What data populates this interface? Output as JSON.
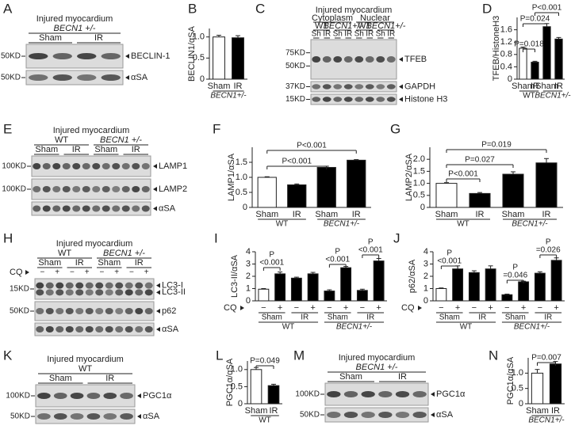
{
  "chart_data": [
    {
      "type": "bar",
      "panel": "B",
      "ylabel": "BECLIN1/αSA",
      "ylim": [
        0,
        1.2
      ],
      "yticks": [
        0,
        0.5,
        {
          "value": 1,
          "label": "1.0"
        }
      ],
      "groups": [
        {
          "name": "BECN1+/-",
          "categories": [
            "Sham",
            "IR"
          ],
          "values": [
            1.0,
            0.98
          ],
          "errors": [
            0.04,
            0.05
          ],
          "colors": [
            "#ffffff",
            "#000000"
          ]
        }
      ]
    },
    {
      "type": "bar",
      "panel": "D",
      "ylabel": "TFEB/HistoneH3",
      "ylim": [
        0,
        2.0
      ],
      "yticks": [
        0,
        0.4,
        0.8,
        1.2,
        1.6
      ],
      "groups": [
        {
          "name": "WT",
          "categories": [
            "Sham",
            "IR"
          ],
          "values": [
            1.0,
            0.55
          ],
          "errors": [
            0.04,
            0.03
          ],
          "colors": [
            "#ffffff",
            "#000000"
          ]
        },
        {
          "name": "BECN1+/-",
          "categories": [
            "Sham",
            "IR"
          ],
          "values": [
            1.7,
            1.3
          ],
          "errors": [
            0.1,
            0.05
          ],
          "colors": [
            "#000000",
            "#000000"
          ]
        }
      ],
      "comparisons": [
        "P=0.018",
        "P=0.024",
        "P<0.001"
      ]
    },
    {
      "type": "bar",
      "panel": "F",
      "ylabel": "LAMP1/αSA",
      "ylim": [
        0,
        2.0
      ],
      "yticks": [
        0,
        0.5,
        {
          "value": 1,
          "label": "1.0"
        },
        1.5
      ],
      "groups": [
        {
          "name": "WT",
          "categories": [
            "Sham",
            "IR"
          ],
          "values": [
            1.0,
            0.75
          ],
          "errors": [
            0.02,
            0.03
          ],
          "colors": [
            "#ffffff",
            "#000000"
          ]
        },
        {
          "name": "BECN1+/-",
          "categories": [
            "Sham",
            "IR"
          ],
          "values": [
            1.33,
            1.57
          ],
          "errors": [
            0.04,
            0.02
          ],
          "colors": [
            "#000000",
            "#000000"
          ]
        }
      ],
      "comparisons": [
        "P<0.001",
        "P<0.001"
      ]
    },
    {
      "type": "bar",
      "panel": "G",
      "ylabel": "LAMP2/αSA",
      "ylim": [
        0,
        2.5
      ],
      "yticks": [
        0,
        0.5,
        {
          "value": 1,
          "label": "1.0"
        },
        1.5,
        {
          "value": 2,
          "label": "2.0"
        }
      ],
      "groups": [
        {
          "name": "WT",
          "categories": [
            "Sham",
            "IR"
          ],
          "values": [
            1.0,
            0.58
          ],
          "errors": [
            0.03,
            0.04
          ],
          "colors": [
            "#ffffff",
            "#000000"
          ]
        },
        {
          "name": "BECN1+/-",
          "categories": [
            "Sham",
            "IR"
          ],
          "values": [
            1.38,
            1.85
          ],
          "errors": [
            0.1,
            0.18
          ],
          "colors": [
            "#000000",
            "#000000"
          ]
        }
      ],
      "comparisons": [
        "P<0.001",
        "P=0.027",
        "P=0.019"
      ]
    },
    {
      "type": "bar",
      "panel": "I",
      "ylabel": "LC3-II/αSA",
      "ylim": [
        0,
        4
      ],
      "yticks": [
        0,
        1,
        2,
        3,
        4
      ],
      "row_label": "CQ",
      "groups": [
        {
          "name": "WT",
          "subgroups": [
            {
              "name": "Sham",
              "categories": [
                "−",
                "+"
              ],
              "values": [
                0.95,
                2.2
              ],
              "errors": [
                0.05,
                0.15
              ],
              "colors": [
                "#ffffff",
                "#000000"
              ]
            },
            {
              "name": "IR",
              "categories": [
                "−",
                "+"
              ],
              "values": [
                1.85,
                2.2
              ],
              "errors": [
                0.08,
                0.12
              ],
              "colors": [
                "#000000",
                "#000000"
              ]
            }
          ]
        },
        {
          "name": "BECN1+/-",
          "subgroups": [
            {
              "name": "Sham",
              "categories": [
                "−",
                "+"
              ],
              "values": [
                0.8,
                2.7
              ],
              "errors": [
                0.1,
                0.1
              ],
              "colors": [
                "#000000",
                "#000000"
              ]
            },
            {
              "name": "IR",
              "categories": [
                "−",
                "+"
              ],
              "values": [
                0.85,
                3.25
              ],
              "errors": [
                0.1,
                0.2
              ],
              "colors": [
                "#000000",
                "#000000"
              ]
            }
          ]
        }
      ],
      "comparisons": [
        [
          "P",
          "<0.001"
        ],
        [
          "P",
          "<0.001"
        ],
        [
          "P",
          "<0.001"
        ]
      ]
    },
    {
      "type": "bar",
      "panel": "J",
      "ylabel": "p62/αSA",
      "ylim": [
        0,
        4
      ],
      "yticks": [
        0,
        1,
        2,
        3,
        4
      ],
      "row_label": "CQ",
      "groups": [
        {
          "name": "WT",
          "subgroups": [
            {
              "name": "Sham",
              "categories": [
                "−",
                "+"
              ],
              "values": [
                1.0,
                2.6
              ],
              "errors": [
                0.05,
                0.25
              ],
              "colors": [
                "#ffffff",
                "#000000"
              ]
            },
            {
              "name": "IR",
              "categories": [
                "−",
                "+"
              ],
              "values": [
                2.3,
                2.6
              ],
              "errors": [
                0.15,
                0.25
              ],
              "colors": [
                "#000000",
                "#000000"
              ]
            }
          ]
        },
        {
          "name": "BECN1+/-",
          "subgroups": [
            {
              "name": "Sham",
              "categories": [
                "−",
                "+"
              ],
              "values": [
                0.5,
                1.55
              ],
              "errors": [
                0.05,
                0.05
              ],
              "colors": [
                "#000000",
                "#000000"
              ]
            },
            {
              "name": "IR",
              "categories": [
                "−",
                "+"
              ],
              "values": [
                2.25,
                3.3
              ],
              "errors": [
                0.12,
                0.2
              ],
              "colors": [
                "#000000",
                "#000000"
              ]
            }
          ]
        }
      ],
      "comparisons": [
        [
          "P",
          "<0.001"
        ],
        [
          "P",
          "=0.046"
        ],
        [
          "P",
          "=0.026"
        ]
      ]
    },
    {
      "type": "bar",
      "panel": "L",
      "ylabel": "PGC1α/αSA",
      "ylim": [
        0,
        1.25
      ],
      "yticks": [
        0,
        0.5,
        {
          "value": 1,
          "label": "1.0"
        }
      ],
      "groups": [
        {
          "name": "WT",
          "categories": [
            "Sham",
            "IR"
          ],
          "values": [
            1.0,
            0.53
          ],
          "errors": [
            0.06,
            0.04
          ],
          "colors": [
            "#ffffff",
            "#000000"
          ]
        }
      ],
      "comparisons": [
        "P=0.049"
      ]
    },
    {
      "type": "bar",
      "panel": "N",
      "ylabel": "PGC1α/αSA",
      "ylim": [
        0,
        1.5
      ],
      "yticks": [
        0,
        0.5,
        {
          "value": 1,
          "label": "1.0"
        }
      ],
      "groups": [
        {
          "name": "BECN1+/-",
          "categories": [
            "Sham",
            "IR"
          ],
          "values": [
            1.0,
            1.3
          ],
          "errors": [
            0.12,
            0.08
          ],
          "colors": [
            "#ffffff",
            "#000000"
          ]
        }
      ],
      "comparisons": [
        "P=0.007"
      ]
    }
  ],
  "blots": [
    {
      "panel": "A",
      "header_rows": [
        [
          "Injured myocardium"
        ],
        [
          "BECN1 +/-"
        ],
        [
          "Sham",
          "IR"
        ]
      ],
      "strips": [
        {
          "markers": [
            "50KD"
          ],
          "labels": [
            "BECLIN-1"
          ]
        },
        {
          "markers": [
            "50KD"
          ],
          "labels": [
            "αSA"
          ]
        }
      ]
    },
    {
      "panel": "C",
      "header_rows": [
        [
          "Injured myocardium"
        ],
        [
          "Cytoplasm",
          "Nuclear"
        ],
        [
          "WT",
          "BECN1+/-",
          "WT",
          "BECN1+/-"
        ],
        [
          "Sh",
          "IR",
          "Sh",
          "IR",
          "Sh",
          "IR",
          "Sh",
          "IR"
        ]
      ],
      "strips": [
        {
          "markers": [
            "75KD",
            "50KD"
          ],
          "labels": [
            "TFEB"
          ]
        },
        {
          "markers": [
            "37KD"
          ],
          "labels": [
            "GAPDH"
          ]
        },
        {
          "markers": [
            "15KD"
          ],
          "labels": [
            "Histone H3"
          ]
        }
      ]
    },
    {
      "panel": "E",
      "header_rows": [
        [
          "Injured myocardium"
        ],
        [
          "WT",
          "BECN1 +/-"
        ],
        [
          "Sham",
          "IR",
          "Sham",
          "IR"
        ]
      ],
      "strips": [
        {
          "markers": [
            "100KD"
          ],
          "labels": [
            "LAMP1"
          ]
        },
        {
          "markers": [
            "100KD"
          ],
          "labels": [
            "LAMP2"
          ]
        },
        {
          "markers": [],
          "labels": [
            "αSA"
          ]
        }
      ]
    },
    {
      "panel": "H",
      "header_rows": [
        [
          "Injured myocardium"
        ],
        [
          "WT",
          "BECN1 +/-"
        ],
        [
          "Sham",
          "IR",
          "Sham",
          "IR"
        ],
        [
          "−",
          "+",
          "−",
          "+",
          "−",
          "+",
          "−",
          "+"
        ]
      ],
      "row_label": "CQ",
      "strips": [
        {
          "markers": [
            "15KD"
          ],
          "labels": [
            "LC3-I",
            "LC3-II"
          ]
        },
        {
          "markers": [
            "50KD"
          ],
          "labels": [
            "p62"
          ]
        },
        {
          "markers": [],
          "labels": [
            "αSA"
          ]
        }
      ]
    },
    {
      "panel": "K",
      "header_rows": [
        [
          "Injured myocardium"
        ],
        [
          "WT"
        ],
        [
          "Sham",
          "IR"
        ]
      ],
      "strips": [
        {
          "markers": [
            "100KD"
          ],
          "labels": [
            "PGC1α"
          ]
        },
        {
          "markers": [
            "50KD"
          ],
          "labels": [
            "αSA"
          ]
        }
      ]
    },
    {
      "panel": "M",
      "header_rows": [
        [
          "Injured myocardium"
        ],
        [
          "BECN1 +/-"
        ],
        [
          "Sham",
          "IR"
        ]
      ],
      "strips": [
        {
          "markers": [
            "100KD"
          ],
          "labels": [
            "PGC1α"
          ]
        },
        {
          "markers": [
            "50KD"
          ],
          "labels": [
            "αSA"
          ]
        }
      ]
    }
  ]
}
